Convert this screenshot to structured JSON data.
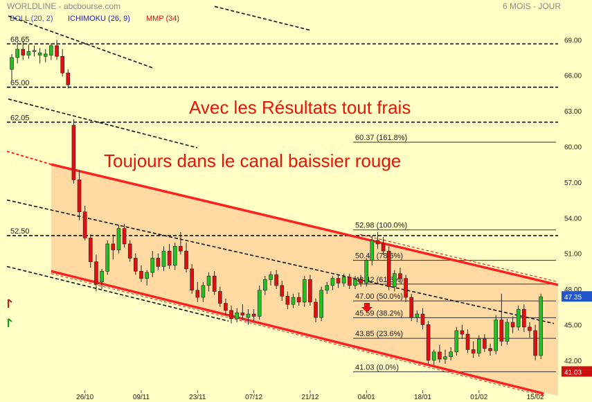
{
  "header": {
    "source": "WORLDLINE - abcbourse.com",
    "period": "6 MOIS - JOUR"
  },
  "indicators": [
    {
      "label": "BOLL (20, 2)",
      "color": "#3a4bd6"
    },
    {
      "label": "ICHIMOKU (26, 9)",
      "color": "#1a1acc"
    },
    {
      "label": "MMP (34)",
      "color": "#e01010"
    }
  ],
  "annotations": {
    "results": "Avec les Résultats tout frais",
    "channel": "Toujours dans le canal baissier rouge"
  },
  "chart_data": {
    "type": "candlestick",
    "title": "WORLDLINE - abcbourse.com",
    "ylim": [
      39.8,
      71.5
    ],
    "y_ticks": [
      42.0,
      45.0,
      48.0,
      51.0,
      54.0,
      57.0,
      60.0,
      63.0,
      66.0,
      69.0
    ],
    "y_tick_labels": [
      "42.00",
      "45.00",
      "48.00",
      "51.00",
      "54.00",
      "57.00",
      "60.00",
      "63.00",
      "66.00",
      "69.00"
    ],
    "x_tick_labels": [
      {
        "label": "26/10",
        "index": 13
      },
      {
        "label": "09/11",
        "index": 23
      },
      {
        "label": "23/11",
        "index": 33
      },
      {
        "label": "07/12",
        "index": 43
      },
      {
        "label": "21/12",
        "index": 53
      },
      {
        "label": "04/01",
        "index": 63
      },
      {
        "label": "18/01",
        "index": 73
      },
      {
        "label": "01/02",
        "index": 83
      },
      {
        "label": "15/02",
        "index": 93
      }
    ],
    "last_price": {
      "label": "47.35",
      "value": 47.35,
      "color": "#2255cc"
    },
    "last_low": {
      "label": "41.03",
      "value": 41.03,
      "color": "#cc1111"
    },
    "horizontal_levels": [
      {
        "label": "68.65",
        "value": 68.65
      },
      {
        "label": "65.00",
        "value": 65.0
      },
      {
        "label": "62.05",
        "value": 62.05
      },
      {
        "label": "52.50",
        "value": 52.5
      }
    ],
    "fibonacci": [
      {
        "label": "60.37  (161.8%)",
        "value": 60.37
      },
      {
        "label": "52.98  (100.0%)",
        "value": 52.98
      },
      {
        "label": "50.42  (78.6%)",
        "value": 50.42
      },
      {
        "label": "48.42  (61.8%)",
        "value": 48.42
      },
      {
        "label": "47.00  (50.0%)",
        "value": 47.0
      },
      {
        "label": "45.59  (38.2%)",
        "value": 45.59
      },
      {
        "label": "43.85  (23.6%)",
        "value": 43.85
      },
      {
        "label": "41.03  (0.0%)",
        "value": 41.03
      }
    ],
    "candles": [
      {
        "o": 66.5,
        "h": 67.8,
        "l": 65.5,
        "c": 67.5
      },
      {
        "o": 67.5,
        "h": 68.8,
        "l": 67.0,
        "c": 68.2
      },
      {
        "o": 68.2,
        "h": 68.9,
        "l": 67.3,
        "c": 67.7
      },
      {
        "o": 67.7,
        "h": 68.6,
        "l": 67.4,
        "c": 68.0
      },
      {
        "o": 68.0,
        "h": 68.5,
        "l": 67.6,
        "c": 68.1
      },
      {
        "o": 67.7,
        "h": 68.3,
        "l": 67.0,
        "c": 67.9
      },
      {
        "o": 67.6,
        "h": 68.2,
        "l": 67.1,
        "c": 67.8
      },
      {
        "o": 67.7,
        "h": 68.7,
        "l": 67.3,
        "c": 68.5
      },
      {
        "o": 68.5,
        "h": 69.0,
        "l": 67.3,
        "c": 67.6
      },
      {
        "o": 67.6,
        "h": 68.2,
        "l": 65.9,
        "c": 66.2
      },
      {
        "o": 66.2,
        "h": 66.5,
        "l": 64.9,
        "c": 65.2
      },
      {
        "o": 61.8,
        "h": 62.3,
        "l": 56.9,
        "c": 57.2
      },
      {
        "o": 57.2,
        "h": 58.0,
        "l": 53.8,
        "c": 54.5
      },
      {
        "o": 54.5,
        "h": 55.0,
        "l": 52.1,
        "c": 52.3
      },
      {
        "o": 52.3,
        "h": 52.6,
        "l": 49.8,
        "c": 50.3
      },
      {
        "o": 50.3,
        "h": 50.9,
        "l": 47.8,
        "c": 48.4
      },
      {
        "o": 48.6,
        "h": 49.7,
        "l": 48.0,
        "c": 49.5
      },
      {
        "o": 49.5,
        "h": 52.1,
        "l": 49.2,
        "c": 51.8
      },
      {
        "o": 51.8,
        "h": 52.6,
        "l": 50.5,
        "c": 51.3
      },
      {
        "o": 51.3,
        "h": 53.4,
        "l": 51.0,
        "c": 53.1
      },
      {
        "o": 53.1,
        "h": 53.5,
        "l": 51.5,
        "c": 51.8
      },
      {
        "o": 51.8,
        "h": 52.1,
        "l": 50.3,
        "c": 50.6
      },
      {
        "o": 50.6,
        "h": 51.0,
        "l": 49.2,
        "c": 49.5
      },
      {
        "o": 49.5,
        "h": 50.0,
        "l": 48.6,
        "c": 48.9
      },
      {
        "o": 48.9,
        "h": 49.6,
        "l": 48.3,
        "c": 49.4
      },
      {
        "o": 49.4,
        "h": 51.2,
        "l": 49.0,
        "c": 50.6
      },
      {
        "o": 50.6,
        "h": 51.0,
        "l": 49.6,
        "c": 49.9
      },
      {
        "o": 49.9,
        "h": 51.6,
        "l": 49.5,
        "c": 51.2
      },
      {
        "o": 51.2,
        "h": 51.8,
        "l": 49.7,
        "c": 50.0
      },
      {
        "o": 50.0,
        "h": 51.9,
        "l": 49.6,
        "c": 51.6
      },
      {
        "o": 51.6,
        "h": 52.8,
        "l": 50.9,
        "c": 51.2
      },
      {
        "o": 51.2,
        "h": 51.9,
        "l": 49.4,
        "c": 49.7
      },
      {
        "o": 49.7,
        "h": 50.1,
        "l": 47.6,
        "c": 47.9
      },
      {
        "o": 47.9,
        "h": 48.6,
        "l": 46.9,
        "c": 47.3
      },
      {
        "o": 47.3,
        "h": 48.6,
        "l": 46.9,
        "c": 48.3
      },
      {
        "o": 48.3,
        "h": 49.4,
        "l": 47.8,
        "c": 49.1
      },
      {
        "o": 49.1,
        "h": 49.5,
        "l": 47.5,
        "c": 47.8
      },
      {
        "o": 47.8,
        "h": 48.2,
        "l": 46.5,
        "c": 46.8
      },
      {
        "o": 46.8,
        "h": 47.2,
        "l": 45.8,
        "c": 46.2
      },
      {
        "o": 46.2,
        "h": 46.6,
        "l": 45.1,
        "c": 45.5
      },
      {
        "o": 45.5,
        "h": 46.4,
        "l": 45.2,
        "c": 46.0
      },
      {
        "o": 46.0,
        "h": 46.7,
        "l": 45.4,
        "c": 45.8
      },
      {
        "o": 45.6,
        "h": 46.3,
        "l": 45.0,
        "c": 45.9
      },
      {
        "o": 45.9,
        "h": 46.3,
        "l": 45.3,
        "c": 45.7
      },
      {
        "o": 45.7,
        "h": 48.3,
        "l": 45.4,
        "c": 47.9
      },
      {
        "o": 47.9,
        "h": 49.1,
        "l": 47.5,
        "c": 48.8
      },
      {
        "o": 48.8,
        "h": 49.5,
        "l": 48.3,
        "c": 49.2
      },
      {
        "o": 49.2,
        "h": 49.6,
        "l": 48.0,
        "c": 48.3
      },
      {
        "o": 48.3,
        "h": 48.7,
        "l": 47.0,
        "c": 47.4
      },
      {
        "o": 47.4,
        "h": 47.8,
        "l": 46.3,
        "c": 46.7
      },
      {
        "o": 46.7,
        "h": 47.6,
        "l": 46.4,
        "c": 47.3
      },
      {
        "o": 47.3,
        "h": 47.7,
        "l": 46.6,
        "c": 46.9
      },
      {
        "o": 46.9,
        "h": 49.1,
        "l": 46.5,
        "c": 48.8
      },
      {
        "o": 48.8,
        "h": 49.2,
        "l": 46.6,
        "c": 46.9
      },
      {
        "o": 46.9,
        "h": 47.2,
        "l": 45.2,
        "c": 45.6
      },
      {
        "o": 45.6,
        "h": 48.2,
        "l": 45.3,
        "c": 47.9
      },
      {
        "o": 47.9,
        "h": 48.6,
        "l": 47.6,
        "c": 48.3
      },
      {
        "o": 48.3,
        "h": 49.1,
        "l": 47.9,
        "c": 48.9
      },
      {
        "o": 48.9,
        "h": 49.2,
        "l": 48.1,
        "c": 48.5
      },
      {
        "o": 48.5,
        "h": 49.3,
        "l": 48.2,
        "c": 49.0
      },
      {
        "o": 49.0,
        "h": 49.3,
        "l": 48.0,
        "c": 48.3
      },
      {
        "o": 48.3,
        "h": 49.1,
        "l": 48.0,
        "c": 48.8
      },
      {
        "o": 48.8,
        "h": 49.2,
        "l": 48.2,
        "c": 48.5
      },
      {
        "o": 48.5,
        "h": 50.6,
        "l": 48.2,
        "c": 50.4
      },
      {
        "o": 50.4,
        "h": 52.5,
        "l": 50.0,
        "c": 52.1
      },
      {
        "o": 52.1,
        "h": 52.8,
        "l": 51.4,
        "c": 51.8
      },
      {
        "o": 51.8,
        "h": 52.4,
        "l": 50.9,
        "c": 51.2
      },
      {
        "o": 51.2,
        "h": 51.6,
        "l": 47.9,
        "c": 48.2
      },
      {
        "o": 48.2,
        "h": 49.6,
        "l": 47.8,
        "c": 49.3
      },
      {
        "o": 49.3,
        "h": 49.8,
        "l": 48.5,
        "c": 48.9
      },
      {
        "o": 48.9,
        "h": 49.2,
        "l": 46.9,
        "c": 47.3
      },
      {
        "o": 47.3,
        "h": 47.6,
        "l": 45.3,
        "c": 45.6
      },
      {
        "o": 45.6,
        "h": 46.2,
        "l": 45.2,
        "c": 45.9
      },
      {
        "o": 45.9,
        "h": 46.4,
        "l": 44.6,
        "c": 45.0
      },
      {
        "o": 45.0,
        "h": 45.3,
        "l": 41.7,
        "c": 42.0
      },
      {
        "o": 42.0,
        "h": 42.9,
        "l": 41.6,
        "c": 42.7
      },
      {
        "o": 42.7,
        "h": 43.3,
        "l": 41.8,
        "c": 42.1
      },
      {
        "o": 42.1,
        "h": 42.9,
        "l": 41.7,
        "c": 42.3
      },
      {
        "o": 42.3,
        "h": 43.1,
        "l": 42.0,
        "c": 42.7
      },
      {
        "o": 42.7,
        "h": 44.8,
        "l": 42.4,
        "c": 44.5
      },
      {
        "o": 44.5,
        "h": 45.0,
        "l": 43.8,
        "c": 44.2
      },
      {
        "o": 44.2,
        "h": 44.6,
        "l": 42.6,
        "c": 42.9
      },
      {
        "o": 42.9,
        "h": 43.6,
        "l": 42.2,
        "c": 42.6
      },
      {
        "o": 42.6,
        "h": 44.1,
        "l": 42.3,
        "c": 43.8
      },
      {
        "o": 43.8,
        "h": 44.2,
        "l": 42.7,
        "c": 43.0
      },
      {
        "o": 43.0,
        "h": 43.4,
        "l": 42.4,
        "c": 42.8
      },
      {
        "o": 42.8,
        "h": 45.8,
        "l": 42.5,
        "c": 45.4
      },
      {
        "o": 45.4,
        "h": 47.6,
        "l": 43.2,
        "c": 43.6
      },
      {
        "o": 43.6,
        "h": 45.5,
        "l": 43.3,
        "c": 45.2
      },
      {
        "o": 45.2,
        "h": 45.7,
        "l": 44.3,
        "c": 44.8
      },
      {
        "o": 44.8,
        "h": 46.6,
        "l": 44.5,
        "c": 46.3
      },
      {
        "o": 46.3,
        "h": 46.7,
        "l": 44.4,
        "c": 44.8
      },
      {
        "o": 44.8,
        "h": 45.2,
        "l": 43.9,
        "c": 44.5
      },
      {
        "o": 44.5,
        "h": 45.0,
        "l": 42.0,
        "c": 42.4
      },
      {
        "o": 42.4,
        "h": 47.6,
        "l": 42.1,
        "c": 47.35
      }
    ]
  }
}
